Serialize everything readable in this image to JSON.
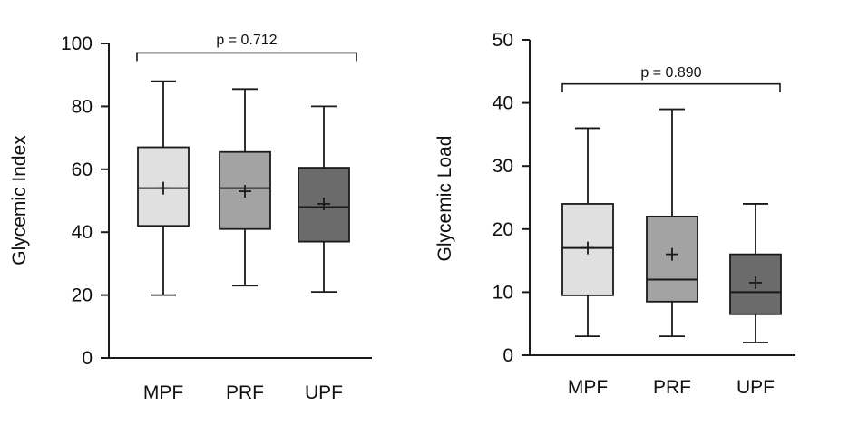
{
  "chart_data": [
    {
      "type": "box",
      "title": "",
      "xlabel": "",
      "ylabel": "Glycemic Index",
      "ylim": [
        0,
        100
      ],
      "yticks": [
        0,
        20,
        40,
        60,
        80,
        100
      ],
      "categories": [
        "MPF",
        "PRF",
        "UPF"
      ],
      "boxes": [
        {
          "category": "MPF",
          "min": 20,
          "q1": 42,
          "median": 54,
          "q3": 67,
          "max": 88,
          "mean": 54,
          "color": "#e0e0e0"
        },
        {
          "category": "PRF",
          "min": 23,
          "q1": 41,
          "median": 54,
          "q3": 65.5,
          "max": 85.5,
          "mean": 53,
          "color": "#a3a3a3"
        },
        {
          "category": "UPF",
          "min": 21,
          "q1": 37,
          "median": 48,
          "q3": 60.5,
          "max": 80,
          "mean": 49,
          "color": "#6b6b6b"
        }
      ],
      "annotation": {
        "text": "p = 0.712",
        "bracket_level": 97
      }
    },
    {
      "type": "box",
      "title": "",
      "xlabel": "",
      "ylabel": "Glycemic Load",
      "ylim": [
        0,
        50
      ],
      "yticks": [
        0,
        10,
        20,
        30,
        40,
        50
      ],
      "categories": [
        "MPF",
        "PRF",
        "UPF"
      ],
      "boxes": [
        {
          "category": "MPF",
          "min": 3,
          "q1": 9.5,
          "median": 17,
          "q3": 24,
          "max": 36,
          "mean": 17,
          "color": "#e0e0e0"
        },
        {
          "category": "PRF",
          "min": 3,
          "q1": 8.5,
          "median": 12,
          "q3": 22,
          "max": 39,
          "mean": 16,
          "color": "#a3a3a3"
        },
        {
          "category": "UPF",
          "min": 2,
          "q1": 6.5,
          "median": 10,
          "q3": 16,
          "max": 24,
          "mean": 11.5,
          "color": "#6b6b6b"
        }
      ],
      "annotation": {
        "text": "p = 0.890",
        "bracket_level": 43
      }
    }
  ]
}
